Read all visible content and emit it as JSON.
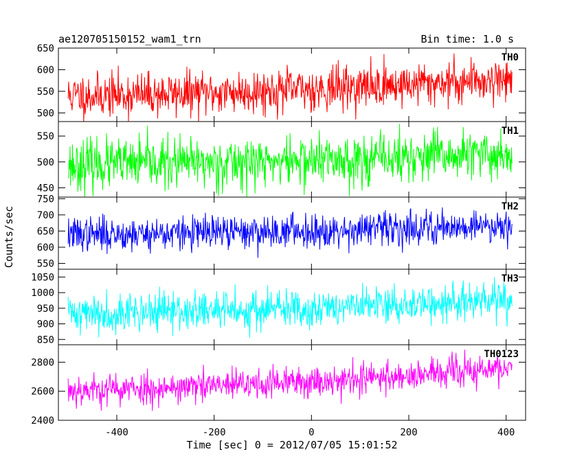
{
  "header": {
    "title": "ae120705150152_wam1_trn",
    "bin_time": "Bin time: 1.0 s"
  },
  "chart_data": {
    "type": "line",
    "xlabel": "Time [sec] 0 = 2012/07/05 15:01:52",
    "ylabel": "Counts/sec",
    "xlim": [
      -520,
      440
    ],
    "xticks": [
      -400,
      -200,
      0,
      200,
      400
    ],
    "x_start": -500,
    "x_end": 412,
    "panels": [
      {
        "name": "TH0",
        "color": "#ff0000",
        "ylim": [
          480,
          650
        ],
        "yticks": [
          500,
          550,
          600,
          650
        ],
        "mean_start": 540,
        "mean_end": 580,
        "noise": 25,
        "seed": 11
      },
      {
        "name": "TH1",
        "color": "#00ff00",
        "ylim": [
          432,
          578
        ],
        "yticks": [
          450,
          500,
          550
        ],
        "mean_start": 495,
        "mean_end": 515,
        "noise": 24,
        "seed": 23
      },
      {
        "name": "TH2",
        "color": "#0000ff",
        "ylim": [
          532,
          755
        ],
        "yticks": [
          550,
          600,
          650,
          700,
          750
        ],
        "mean_start": 640,
        "mean_end": 670,
        "noise": 26,
        "seed": 37
      },
      {
        "name": "TH3",
        "color": "#00ffff",
        "ylim": [
          833,
          1075
        ],
        "yticks": [
          850,
          900,
          950,
          1000,
          1050
        ],
        "mean_start": 935,
        "mean_end": 975,
        "noise": 31,
        "seed": 41
      },
      {
        "name": "TH0123",
        "color": "#ff00ff",
        "ylim": [
          2400,
          2920
        ],
        "yticks": [
          2400,
          2600,
          2800
        ],
        "mean_start": 2610,
        "mean_end": 2760,
        "noise": 55,
        "seed": 53
      }
    ]
  }
}
